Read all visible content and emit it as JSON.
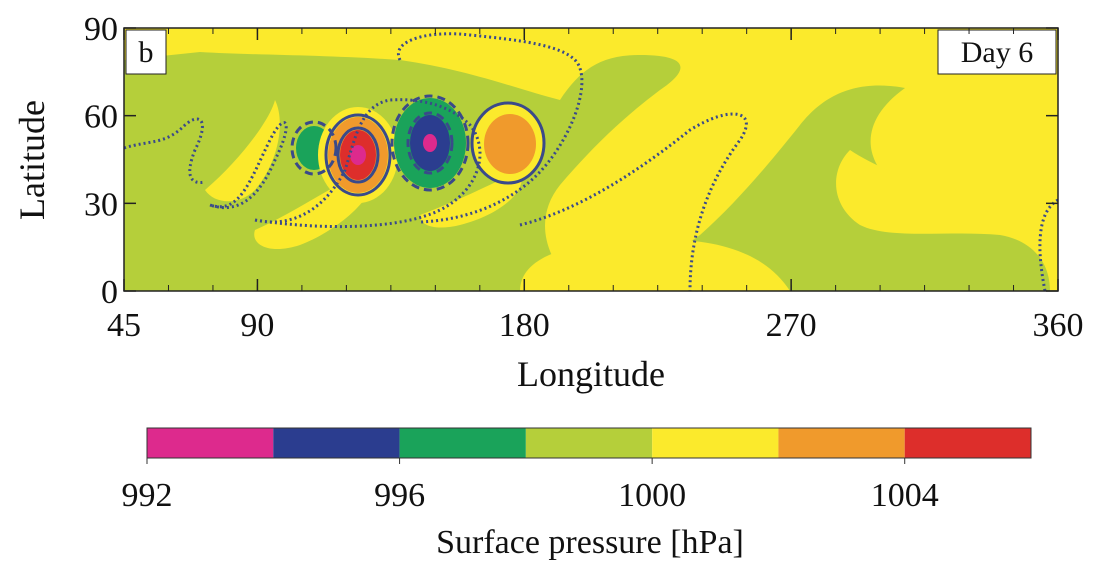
{
  "chart_data": {
    "type": "heatmap",
    "panel_label": "b",
    "annotation": "Day 6",
    "xlabel": "Longitude",
    "ylabel": "Latitude",
    "xlim": [
      45,
      360
    ],
    "ylim": [
      0,
      90
    ],
    "x_ticks": [
      45,
      90,
      180,
      270,
      360
    ],
    "y_ticks": [
      0,
      30,
      60,
      90
    ],
    "background_level_hPa": 1000,
    "pressure_centers": [
      {
        "type": "low",
        "lon": 97,
        "lat": 48,
        "value": 999.5
      },
      {
        "type": "low",
        "lon": 110,
        "lat": 46,
        "value": 997
      },
      {
        "type": "high",
        "lon": 125,
        "lat": 45,
        "value": 1006
      },
      {
        "type": "low",
        "lon": 149,
        "lat": 49,
        "value": 992.5
      },
      {
        "type": "high",
        "lon": 177,
        "lat": 50,
        "value": 1003
      }
    ],
    "colorbar": {
      "title": "Surface pressure [hPa]",
      "tick_labels": [
        "992",
        "996",
        "1000",
        "1004"
      ],
      "boundaries": [
        992,
        994,
        996,
        998,
        1000,
        1002,
        1004,
        1006
      ],
      "colors": [
        "#dd2a8d",
        "#2b3d8f",
        "#1aa35a",
        "#b5cf3a",
        "#fbea2c",
        "#f09a2c",
        "#dd2e2b"
      ]
    }
  }
}
